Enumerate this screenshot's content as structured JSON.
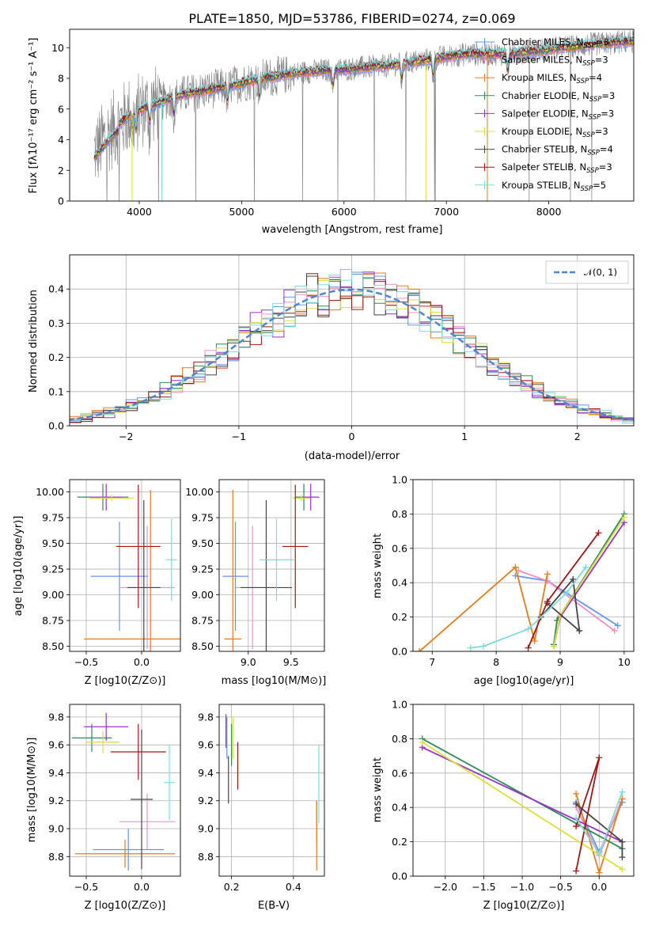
{
  "figure": {
    "title": "PLATE=1850, MJD=53786, FIBERID=0274, z=0.069"
  },
  "colors": {
    "Chabrier MILES": "#6495ed",
    "Salpeter MILES": "#f08fc0",
    "Kroupa MILES": "#e57b1a",
    "Chabrier ELODIE": "#2e8b57",
    "Salpeter ELODIE": "#9932cc",
    "Kroupa ELODIE": "#dede3a",
    "Chabrier STELIB": "#444444",
    "Salpeter STELIB": "#a31515",
    "Kroupa STELIB": "#7fdbdb",
    "observed": "#808080",
    "gaussian": "#4f86d0",
    "grid": "#b0b0b0"
  },
  "chart_data": [
    {
      "type": "line",
      "title": "PLATE=1850, MJD=53786, FIBERID=0274, z=0.069",
      "xlabel": "wavelength [Angstrom, rest frame]",
      "ylabel": "Flux [fλ10⁻¹⁷ erg cm⁻² s⁻¹ A⁻¹]",
      "xlim": [
        3320,
        8830
      ],
      "ylim": [
        0,
        11.2
      ],
      "xticks": [
        4000,
        5000,
        6000,
        7000,
        8000
      ],
      "yticks": [
        0,
        2,
        4,
        6,
        8,
        10
      ],
      "legend_position": "top-right",
      "grid": false,
      "continuum": [
        [
          3560,
          3.2
        ],
        [
          3700,
          4.4
        ],
        [
          3900,
          5.6
        ],
        [
          4100,
          6.2
        ],
        [
          4400,
          6.9
        ],
        [
          4800,
          7.4
        ],
        [
          5200,
          8.0
        ],
        [
          5600,
          8.4
        ],
        [
          6000,
          8.6
        ],
        [
          6400,
          8.8
        ],
        [
          6800,
          9.2
        ],
        [
          7200,
          9.6
        ],
        [
          7600,
          9.6
        ],
        [
          8000,
          9.9
        ],
        [
          8400,
          10.2
        ],
        [
          8800,
          10.4
        ]
      ],
      "series": [
        {
          "name": "Chabrier MILES, N_SSP=3",
          "label_main": "Chabrier MILES, N",
          "label_sub": "SSP",
          "label_tail": "=3"
        },
        {
          "name": "Salpeter MILES, N_SSP=3",
          "label_main": "Salpeter MILES, N",
          "label_sub": "SSP",
          "label_tail": "=3"
        },
        {
          "name": "Kroupa MILES, N_SSP=4",
          "label_main": "Kroupa MILES, N",
          "label_sub": "SSP",
          "label_tail": "=4"
        },
        {
          "name": "Chabrier ELODIE, N_SSP=3",
          "label_main": "Chabrier ELODIE, N",
          "label_sub": "SSP",
          "label_tail": "=3"
        },
        {
          "name": "Salpeter ELODIE, N_SSP=3",
          "label_main": "Salpeter ELODIE, N",
          "label_sub": "SSP",
          "label_tail": "=3"
        },
        {
          "name": "Kroupa ELODIE, N_SSP=3",
          "label_main": "Kroupa ELODIE, N",
          "label_sub": "SSP",
          "label_tail": "=3"
        },
        {
          "name": "Chabrier STELIB, N_SSP=4",
          "label_main": "Chabrier STELIB, N",
          "label_sub": "SSP",
          "label_tail": "=4"
        },
        {
          "name": "Salpeter STELIB, N_SSP=3",
          "label_main": "Salpeter STELIB, N",
          "label_sub": "SSP",
          "label_tail": "=3"
        },
        {
          "name": "Kroupa STELIB, N_SSP=5",
          "label_main": "Kroupa STELIB, N",
          "label_sub": "SSP",
          "label_tail": "=5"
        }
      ]
    },
    {
      "type": "histogram",
      "xlabel": "(data-model)/error",
      "ylabel": "Normed distribution",
      "xlim": [
        -2.5,
        2.5
      ],
      "ylim": [
        0,
        0.5
      ],
      "xticks": [
        -2,
        -1,
        0,
        1,
        2
      ],
      "yticks": [
        0.0,
        0.1,
        0.2,
        0.3,
        0.4
      ],
      "grid": true,
      "bin_width": 0.1,
      "legend": [
        {
          "label": "𝒩(0, 1)",
          "style": "dashed"
        }
      ],
      "legend_position": "top-right",
      "gaussian": {
        "mean": 0,
        "sigma": 1
      }
    },
    {
      "type": "errorbar",
      "xlabel": "Z [log10(Z/Z⊙)]",
      "ylabel": "age  [log10(age/yr)]",
      "xlim": [
        -0.65,
        0.35
      ],
      "ylim": [
        8.45,
        10.12
      ],
      "xticks": [
        -0.5,
        0.0
      ],
      "yticks": [
        8.5,
        8.75,
        9.0,
        9.25,
        9.5,
        9.75,
        10.0
      ],
      "grid": true,
      "points": [
        {
          "series": "Chabrier MILES",
          "x": -0.2,
          "xerr": 0.26,
          "y": 9.18,
          "yerr": 0.53
        },
        {
          "series": "Salpeter MILES",
          "x": 0.05,
          "xerr": 0.25,
          "y": 9.07,
          "yerr": 0.6
        },
        {
          "series": "Kroupa MILES",
          "x": 0.08,
          "xerr": 0.6,
          "y": 8.57,
          "yerr": 1.45
        },
        {
          "series": "Chabrier ELODIE",
          "x": -0.35,
          "xerr": 0.23,
          "y": 9.95,
          "yerr": 0.13
        },
        {
          "series": "Salpeter ELODIE",
          "x": -0.32,
          "xerr": 0.15,
          "y": 9.95,
          "yerr": 0.13
        },
        {
          "series": "Kroupa ELODIE",
          "x": -0.27,
          "xerr": 0.2,
          "y": 9.94,
          "yerr": 0.03
        },
        {
          "series": "Chabrier STELIB",
          "x": 0.02,
          "xerr": 0.15,
          "y": 9.07,
          "yerr": 0.85
        },
        {
          "series": "Salpeter STELIB",
          "x": -0.03,
          "xerr": 0.2,
          "y": 9.47,
          "yerr": 0.6
        },
        {
          "series": "Kroupa STELIB",
          "x": 0.27,
          "xerr": 0.05,
          "y": 9.34,
          "yerr": 0.4
        }
      ]
    },
    {
      "type": "errorbar",
      "xlabel": "mass [log10(M/M⊙)]",
      "ylabel": "",
      "xlim": [
        8.66,
        9.89
      ],
      "ylim": [
        8.45,
        10.12
      ],
      "xticks": [
        9.0,
        9.5
      ],
      "yticks": [
        8.5,
        8.75,
        9.0,
        9.25,
        9.5,
        9.75,
        10.0
      ],
      "grid": true,
      "points": [
        {
          "series": "Chabrier MILES",
          "x": 8.85,
          "xerr": 0.15,
          "y": 9.18,
          "yerr": 0.53
        },
        {
          "series": "Salpeter MILES",
          "x": 9.05,
          "xerr": 0.2,
          "y": 9.07,
          "yerr": 0.6
        },
        {
          "series": "Kroupa MILES",
          "x": 8.82,
          "xerr": 0.1,
          "y": 8.57,
          "yerr": 1.45
        },
        {
          "series": "Chabrier ELODIE",
          "x": 9.65,
          "xerr": 0.1,
          "y": 9.95,
          "yerr": 0.13
        },
        {
          "series": "Salpeter ELODIE",
          "x": 9.73,
          "xerr": 0.1,
          "y": 9.95,
          "yerr": 0.13
        },
        {
          "series": "Kroupa ELODIE",
          "x": 9.62,
          "xerr": 0.1,
          "y": 9.94,
          "yerr": 0.03
        },
        {
          "series": "Chabrier STELIB",
          "x": 9.21,
          "xerr": 0.3,
          "y": 9.07,
          "yerr": 0.85
        },
        {
          "series": "Salpeter STELIB",
          "x": 9.55,
          "xerr": 0.15,
          "y": 9.47,
          "yerr": 0.6
        },
        {
          "series": "Kroupa STELIB",
          "x": 9.33,
          "xerr": 0.2,
          "y": 9.34,
          "yerr": 0.4
        }
      ]
    },
    {
      "type": "line",
      "xlabel": "age  [log10(age/yr)]",
      "ylabel": "mass weight",
      "xlim": [
        6.7,
        10.15
      ],
      "ylim": [
        0,
        1.0
      ],
      "xticks": [
        7,
        8,
        9,
        10
      ],
      "yticks": [
        0.0,
        0.2,
        0.4,
        0.6,
        0.8,
        1.0
      ],
      "grid": true,
      "series": [
        {
          "name": "Chabrier MILES",
          "x": [
            8.3,
            8.8,
            9.9
          ],
          "y": [
            0.44,
            0.41,
            0.15
          ]
        },
        {
          "name": "Salpeter MILES",
          "x": [
            8.35,
            8.8,
            9.85
          ],
          "y": [
            0.47,
            0.41,
            0.12
          ]
        },
        {
          "name": "Kroupa MILES",
          "x": [
            6.8,
            8.3,
            8.6,
            8.8
          ],
          "y": [
            0.0,
            0.49,
            0.06,
            0.45
          ]
        },
        {
          "name": "Chabrier ELODIE",
          "x": [
            8.9,
            8.95,
            10.0
          ],
          "y": [
            0.04,
            0.18,
            0.8
          ]
        },
        {
          "name": "Salpeter ELODIE",
          "x": [
            8.9,
            9.0,
            10.0
          ],
          "y": [
            0.03,
            0.2,
            0.75
          ]
        },
        {
          "name": "Kroupa ELODIE",
          "x": [
            8.9,
            9.0,
            10.0
          ],
          "y": [
            0.03,
            0.21,
            0.78
          ]
        },
        {
          "name": "Chabrier STELIB",
          "x": [
            8.7,
            9.2,
            9.3,
            8.8
          ],
          "y": [
            0.2,
            0.42,
            0.12,
            0.28
          ]
        },
        {
          "name": "Salpeter STELIB",
          "x": [
            8.5,
            8.8,
            9.6
          ],
          "y": [
            0.02,
            0.29,
            0.69
          ]
        },
        {
          "name": "Kroupa STELIB",
          "x": [
            7.6,
            7.8,
            8.5,
            9.1,
            9.4
          ],
          "y": [
            0.02,
            0.03,
            0.13,
            0.34,
            0.49
          ]
        }
      ]
    },
    {
      "type": "errorbar",
      "xlabel": "Z [log10(Z/Z⊙)]",
      "ylabel": "mass [log10(M/M⊙)]",
      "xlim": [
        -0.65,
        0.35
      ],
      "ylim": [
        8.66,
        9.89
      ],
      "xticks": [
        -0.5,
        0.0
      ],
      "yticks": [
        8.8,
        9.0,
        9.2,
        9.4,
        9.6,
        9.8
      ],
      "grid": true,
      "points": [
        {
          "series": "Chabrier MILES",
          "x": -0.12,
          "xerr": 0.32,
          "y": 8.85,
          "yerr": 0.15
        },
        {
          "series": "Salpeter MILES",
          "x": 0.05,
          "xerr": 0.25,
          "y": 9.05,
          "yerr": 0.2
        },
        {
          "series": "Kroupa MILES",
          "x": -0.15,
          "xerr": 0.45,
          "y": 8.82,
          "yerr": 0.1
        },
        {
          "series": "Chabrier ELODIE",
          "x": -0.45,
          "xerr": 0.18,
          "y": 9.65,
          "yerr": 0.1
        },
        {
          "series": "Salpeter ELODIE",
          "x": -0.32,
          "xerr": 0.2,
          "y": 9.73,
          "yerr": 0.1
        },
        {
          "series": "Kroupa ELODIE",
          "x": -0.35,
          "xerr": 0.15,
          "y": 9.62,
          "yerr": 0.08
        },
        {
          "series": "Chabrier STELIB",
          "x": 0.0,
          "xerr": 0.1,
          "y": 9.21,
          "yerr": 0.5
        },
        {
          "series": "Salpeter STELIB",
          "x": -0.03,
          "xerr": 0.25,
          "y": 9.55,
          "yerr": 0.2
        },
        {
          "series": "Kroupa STELIB",
          "x": 0.25,
          "xerr": 0.05,
          "y": 9.33,
          "yerr": 0.27
        }
      ]
    },
    {
      "type": "errorbar",
      "xlabel": "E(B-V)",
      "ylabel": "",
      "xlim": [
        0.16,
        0.5
      ],
      "ylim": [
        8.66,
        9.89
      ],
      "xticks": [
        0.2,
        0.4
      ],
      "yticks": [
        8.8,
        9.0,
        9.2,
        9.4,
        9.6,
        9.8
      ],
      "grid": true,
      "points": [
        {
          "series": "Chabrier MILES",
          "x": 0.185,
          "xerr": 0,
          "y": 9.65,
          "yerr": 0.15
        },
        {
          "series": "Salpeter MILES",
          "x": 0.475,
          "xerr": 0,
          "y": 9.05,
          "yerr": 0.15
        },
        {
          "series": "Kroupa MILES",
          "x": 0.475,
          "xerr": 0,
          "y": 8.95,
          "yerr": 0.25
        },
        {
          "series": "Chabrier ELODIE",
          "x": 0.2,
          "xerr": 0,
          "y": 9.6,
          "yerr": 0.15
        },
        {
          "series": "Salpeter ELODIE",
          "x": 0.182,
          "xerr": 0,
          "y": 9.7,
          "yerr": 0.12
        },
        {
          "series": "Kroupa ELODIE",
          "x": 0.205,
          "xerr": 0,
          "y": 9.65,
          "yerr": 0.15
        },
        {
          "series": "Chabrier STELIB",
          "x": 0.19,
          "xerr": 0,
          "y": 9.35,
          "yerr": 0.17
        },
        {
          "series": "Salpeter STELIB",
          "x": 0.22,
          "xerr": 0,
          "y": 9.45,
          "yerr": 0.17
        },
        {
          "series": "Kroupa STELIB",
          "x": 0.482,
          "xerr": 0,
          "y": 9.32,
          "yerr": 0.28
        }
      ]
    },
    {
      "type": "line",
      "xlabel": "Z [log10(Z/Z⊙)]",
      "ylabel": "mass weight",
      "xlim": [
        -2.42,
        0.45
      ],
      "ylim": [
        0,
        1.0
      ],
      "xticks": [
        -2.0,
        -1.5,
        -1.0,
        -0.5,
        0.0
      ],
      "yticks": [
        0.0,
        0.2,
        0.4,
        0.6,
        0.8,
        1.0
      ],
      "grid": true,
      "series": [
        {
          "name": "Chabrier MILES",
          "x": [
            -0.3,
            0.0,
            0.3
          ],
          "y": [
            0.43,
            0.14,
            0.43
          ]
        },
        {
          "name": "Salpeter MILES",
          "x": [
            -0.3,
            0.0,
            0.3
          ],
          "y": [
            0.4,
            0.12,
            0.45
          ]
        },
        {
          "name": "Kroupa MILES",
          "x": [
            -0.3,
            0.0,
            0.3
          ],
          "y": [
            0.48,
            0.02,
            0.45
          ]
        },
        {
          "name": "Chabrier ELODIE",
          "x": [
            -2.3,
            0.3
          ],
          "y": [
            0.8,
            0.16
          ]
        },
        {
          "name": "Salpeter ELODIE",
          "x": [
            -2.3,
            0.3
          ],
          "y": [
            0.75,
            0.2
          ]
        },
        {
          "name": "Kroupa ELODIE",
          "x": [
            -2.3,
            0.3
          ],
          "y": [
            0.78,
            0.04
          ]
        },
        {
          "name": "Chabrier STELIB",
          "x": [
            -0.3,
            0.3,
            0.3
          ],
          "y": [
            0.42,
            0.2,
            0.11
          ]
        },
        {
          "name": "Salpeter STELIB",
          "x": [
            -0.3,
            0.0,
            -0.3
          ],
          "y": [
            0.03,
            0.69,
            0.29
          ]
        },
        {
          "name": "Kroupa STELIB",
          "x": [
            -0.3,
            0.0,
            0.3
          ],
          "y": [
            0.34,
            0.13,
            0.49
          ]
        }
      ]
    }
  ]
}
